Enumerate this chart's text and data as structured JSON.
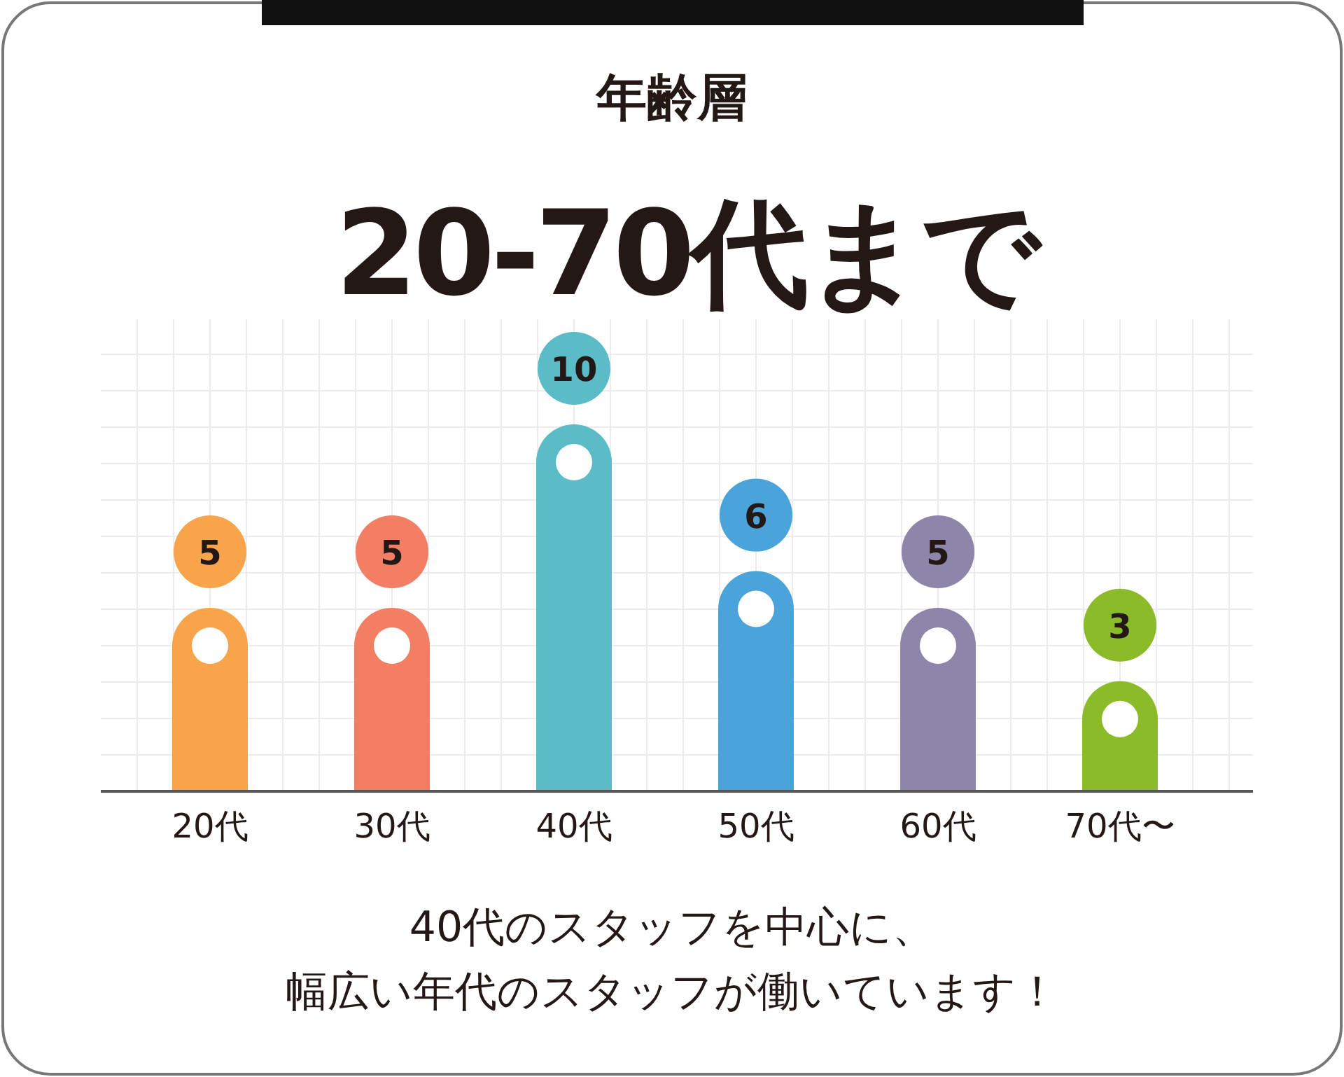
{
  "chart_data": {
    "type": "bar",
    "title": "年齢層",
    "subtitle": "20-70代まで",
    "categories": [
      "20代",
      "30代",
      "40代",
      "50代",
      "60代",
      "70代〜"
    ],
    "values": [
      5,
      5,
      10,
      6,
      5,
      3
    ],
    "colors": [
      "#f7a44b",
      "#f27e63",
      "#5bbcc8",
      "#4aa4d9",
      "#8e85aa",
      "#8bbb29"
    ],
    "data_labels": true,
    "grid": true,
    "annotations": [
      "40代のスタッフを中心に、",
      "幅広い年代のスタッフが働いています！"
    ]
  }
}
